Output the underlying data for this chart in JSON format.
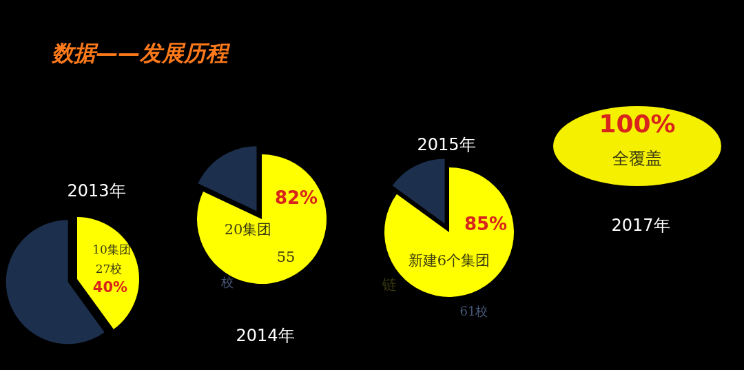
{
  "chart_data": [
    {
      "type": "pie",
      "title": "2013年",
      "categories": [
        null,
        null
      ],
      "values": [
        40,
        60
      ],
      "colors": [
        "#ffff00",
        "#1c2f4d"
      ],
      "value_labels": [
        "40%",
        null
      ],
      "annotations": [
        "数据——发展历程",
        "10集团",
        "27校"
      ]
    },
    {
      "type": "pie",
      "title": "2014年",
      "categories": [
        null,
        null
      ],
      "values": [
        82,
        18
      ],
      "colors": [
        "#ffff00",
        "#1c2f4d"
      ],
      "value_labels": [
        "82%",
        null
      ],
      "annotations": [
        "20集团",
        "55",
        "校"
      ]
    },
    {
      "type": "pie",
      "title": "2015年",
      "categories": [
        null,
        null
      ],
      "values": [
        85,
        15
      ],
      "colors": [
        "#ffff00",
        "#1c2f4d"
      ],
      "value_labels": [
        "85%",
        null
      ],
      "annotations": [
        "新建6个集团",
        "链",
        "61校"
      ]
    },
    {
      "type": "pie",
      "title": "2017年",
      "categories": [
        null
      ],
      "values": [
        100
      ],
      "colors": [
        "#f5f000"
      ],
      "value_labels": [
        "100%"
      ],
      "annotations": [
        "全覆盖"
      ]
    }
  ]
}
